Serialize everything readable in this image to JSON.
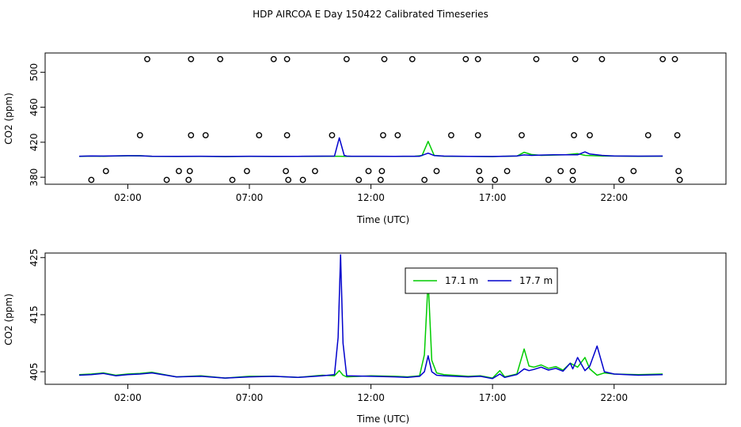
{
  "title": "HDP AIRCOA E  Day 150422  Calibrated Timeseries",
  "colors": {
    "green": "#00cc00",
    "blue": "#0000cc",
    "axis": "#000000",
    "bg": "#ffffff"
  },
  "chart_data": [
    {
      "type": "line",
      "xlabel": "Time (UTC)",
      "ylabel": "CO2 (ppm)",
      "xlim": [
        -1.4,
        26.6
      ],
      "ylim": [
        372,
        522
      ],
      "xticks": [
        2,
        7,
        12,
        17,
        22
      ],
      "xtick_labels": [
        "02:00",
        "07:00",
        "12:00",
        "17:00",
        "22:00"
      ],
      "yticks": [
        380,
        420,
        460,
        500
      ],
      "ytick_labels": [
        "380",
        "420",
        "460",
        "500"
      ],
      "series": [
        {
          "color": "#00cc00",
          "x": [
            0,
            0.5,
            1,
            1.5,
            2,
            2.5,
            3,
            4,
            5,
            6,
            7,
            8,
            9,
            10,
            10.7,
            10.9,
            11,
            12,
            13,
            13.8,
            14.1,
            14.35,
            14.6,
            15,
            16,
            17,
            17.5,
            18,
            18.3,
            18.6,
            19,
            19.5,
            20,
            20.5,
            20.8,
            21,
            21.5,
            22,
            23,
            24
          ],
          "values": [
            403.8,
            404.2,
            404,
            404.3,
            404.5,
            404.6,
            403.9,
            403.7,
            403.9,
            403.6,
            403.9,
            403.7,
            403.8,
            404,
            404,
            403.9,
            403.8,
            403.9,
            403.8,
            404,
            404.8,
            421,
            405,
            404,
            403.8,
            403.6,
            404,
            404.2,
            408.5,
            406,
            405,
            405.3,
            405.6,
            407,
            405,
            404.8,
            404.3,
            404.2,
            404,
            404.1
          ]
        },
        {
          "color": "#0000cc",
          "x": [
            0,
            0.5,
            1,
            1.5,
            2,
            2.5,
            3,
            4,
            5,
            6,
            7,
            8,
            9,
            10,
            10.5,
            10.7,
            10.9,
            11,
            11.2,
            12,
            13,
            14,
            14.35,
            14.6,
            15,
            16,
            17,
            17.5,
            18,
            18.3,
            18.6,
            19,
            19.5,
            20,
            20.5,
            20.8,
            21,
            21.5,
            22,
            23,
            24
          ],
          "values": [
            404,
            404.3,
            404.2,
            404.4,
            404.6,
            404.5,
            404,
            403.8,
            404,
            403.7,
            404,
            403.8,
            403.9,
            404.1,
            404.2,
            425,
            405,
            404.2,
            404,
            404,
            403.9,
            404,
            407.5,
            404.8,
            404.2,
            403.9,
            403.7,
            404,
            404.3,
            405.5,
            405,
            405.3,
            405.6,
            405.7,
            405.6,
            409,
            406.5,
            405,
            404.3,
            404.1,
            404.2
          ]
        }
      ],
      "points": [
        {
          "x": 0.5,
          "y": 377
        },
        {
          "x": 1.1,
          "y": 387
        },
        {
          "x": 2.5,
          "y": 428
        },
        {
          "x": 2.8,
          "y": 515
        },
        {
          "x": 3.6,
          "y": 377
        },
        {
          "x": 4.1,
          "y": 387
        },
        {
          "x": 4.5,
          "y": 377
        },
        {
          "x": 4.55,
          "y": 387
        },
        {
          "x": 4.6,
          "y": 428
        },
        {
          "x": 4.6,
          "y": 515
        },
        {
          "x": 5.2,
          "y": 428
        },
        {
          "x": 5.8,
          "y": 515
        },
        {
          "x": 6.3,
          "y": 377
        },
        {
          "x": 6.9,
          "y": 387
        },
        {
          "x": 7.4,
          "y": 428
        },
        {
          "x": 8.0,
          "y": 515
        },
        {
          "x": 8.5,
          "y": 387
        },
        {
          "x": 8.55,
          "y": 428
        },
        {
          "x": 8.55,
          "y": 515
        },
        {
          "x": 8.6,
          "y": 377
        },
        {
          "x": 9.2,
          "y": 377
        },
        {
          "x": 9.7,
          "y": 387
        },
        {
          "x": 10.4,
          "y": 428
        },
        {
          "x": 11.0,
          "y": 515
        },
        {
          "x": 11.5,
          "y": 377
        },
        {
          "x": 11.9,
          "y": 387
        },
        {
          "x": 12.4,
          "y": 377
        },
        {
          "x": 12.45,
          "y": 387
        },
        {
          "x": 12.5,
          "y": 428
        },
        {
          "x": 12.55,
          "y": 515
        },
        {
          "x": 13.1,
          "y": 428
        },
        {
          "x": 13.7,
          "y": 515
        },
        {
          "x": 14.2,
          "y": 377
        },
        {
          "x": 14.7,
          "y": 387
        },
        {
          "x": 15.3,
          "y": 428
        },
        {
          "x": 15.9,
          "y": 515
        },
        {
          "x": 16.4,
          "y": 515
        },
        {
          "x": 16.4,
          "y": 428
        },
        {
          "x": 16.45,
          "y": 387
        },
        {
          "x": 16.5,
          "y": 377
        },
        {
          "x": 17.1,
          "y": 377
        },
        {
          "x": 17.6,
          "y": 387
        },
        {
          "x": 18.2,
          "y": 428
        },
        {
          "x": 18.8,
          "y": 515
        },
        {
          "x": 19.3,
          "y": 377
        },
        {
          "x": 19.8,
          "y": 387
        },
        {
          "x": 20.3,
          "y": 387
        },
        {
          "x": 20.3,
          "y": 377
        },
        {
          "x": 20.35,
          "y": 428
        },
        {
          "x": 20.4,
          "y": 515
        },
        {
          "x": 21.0,
          "y": 428
        },
        {
          "x": 21.5,
          "y": 515
        },
        {
          "x": 22.3,
          "y": 377
        },
        {
          "x": 22.8,
          "y": 387
        },
        {
          "x": 23.4,
          "y": 428
        },
        {
          "x": 24.0,
          "y": 515
        },
        {
          "x": 24.5,
          "y": 515
        },
        {
          "x": 24.6,
          "y": 428
        },
        {
          "x": 24.65,
          "y": 387
        },
        {
          "x": 24.7,
          "y": 377
        }
      ]
    },
    {
      "type": "line",
      "xlabel": "Time (UTC)",
      "ylabel": "CO2 (ppm)",
      "xlim": [
        -1.4,
        26.6
      ],
      "ylim": [
        402.8,
        425.8
      ],
      "xticks": [
        2,
        7,
        12,
        17,
        22
      ],
      "xtick_labels": [
        "02:00",
        "07:00",
        "12:00",
        "17:00",
        "22:00"
      ],
      "yticks": [
        405,
        415,
        425
      ],
      "ytick_labels": [
        "405",
        "415",
        "425"
      ],
      "legend": {
        "position": "top-center"
      },
      "series": [
        {
          "name": "17.1 m",
          "color": "#00cc00",
          "x": [
            0,
            0.5,
            1,
            1.5,
            2,
            2.5,
            3,
            4,
            5,
            6,
            7,
            8,
            9,
            10,
            10.5,
            10.7,
            10.85,
            11,
            12,
            13,
            13.5,
            14,
            14.2,
            14.35,
            14.5,
            14.7,
            15,
            16,
            16.5,
            17,
            17.3,
            17.5,
            18,
            18.3,
            18.5,
            18.7,
            19,
            19.3,
            19.6,
            19.9,
            20.2,
            20.5,
            20.8,
            21,
            21.3,
            21.6,
            22,
            23,
            24
          ],
          "values": [
            404.5,
            404.6,
            404.8,
            404.4,
            404.6,
            404.7,
            404.9,
            404.1,
            404.3,
            403.9,
            404.2,
            404.2,
            404,
            404.4,
            404.3,
            405.2,
            404.4,
            404.1,
            404.3,
            404.2,
            404.1,
            404.3,
            408,
            421,
            407,
            404.8,
            404.5,
            404.2,
            404.3,
            403.9,
            405.2,
            404.1,
            404.6,
            409,
            406,
            405.8,
            406.2,
            405.6,
            405.9,
            405.3,
            406.5,
            405.8,
            407.5,
            405.5,
            404.4,
            404.8,
            404.6,
            404.5,
            404.6
          ]
        },
        {
          "name": "17.7 m",
          "color": "#0000cc",
          "x": [
            0,
            0.5,
            1,
            1.5,
            2,
            2.5,
            3,
            4,
            5,
            6,
            7,
            8,
            9,
            10,
            10.5,
            10.65,
            10.75,
            10.85,
            11,
            12,
            13,
            13.5,
            14,
            14.2,
            14.35,
            14.5,
            14.7,
            15,
            16,
            16.5,
            17,
            17.3,
            17.5,
            18,
            18.3,
            18.5,
            18.7,
            19,
            19.3,
            19.6,
            19.9,
            20.2,
            20.3,
            20.5,
            20.8,
            21,
            21.3,
            21.6,
            22,
            23,
            24
          ],
          "values": [
            404.4,
            404.5,
            404.7,
            404.3,
            404.5,
            404.6,
            404.8,
            404.1,
            404.2,
            403.9,
            404.1,
            404.2,
            404,
            404.3,
            404.5,
            411,
            425.5,
            410,
            404.3,
            404.2,
            404.1,
            404,
            404.2,
            405,
            407.8,
            405,
            404.4,
            404.3,
            404.1,
            404.2,
            403.8,
            404.6,
            404,
            404.5,
            405.5,
            405.2,
            405.4,
            405.8,
            405.3,
            405.6,
            405.1,
            406.5,
            405.5,
            407.5,
            405.2,
            406,
            409.5,
            405,
            404.6,
            404.4,
            404.5
          ]
        }
      ]
    }
  ]
}
